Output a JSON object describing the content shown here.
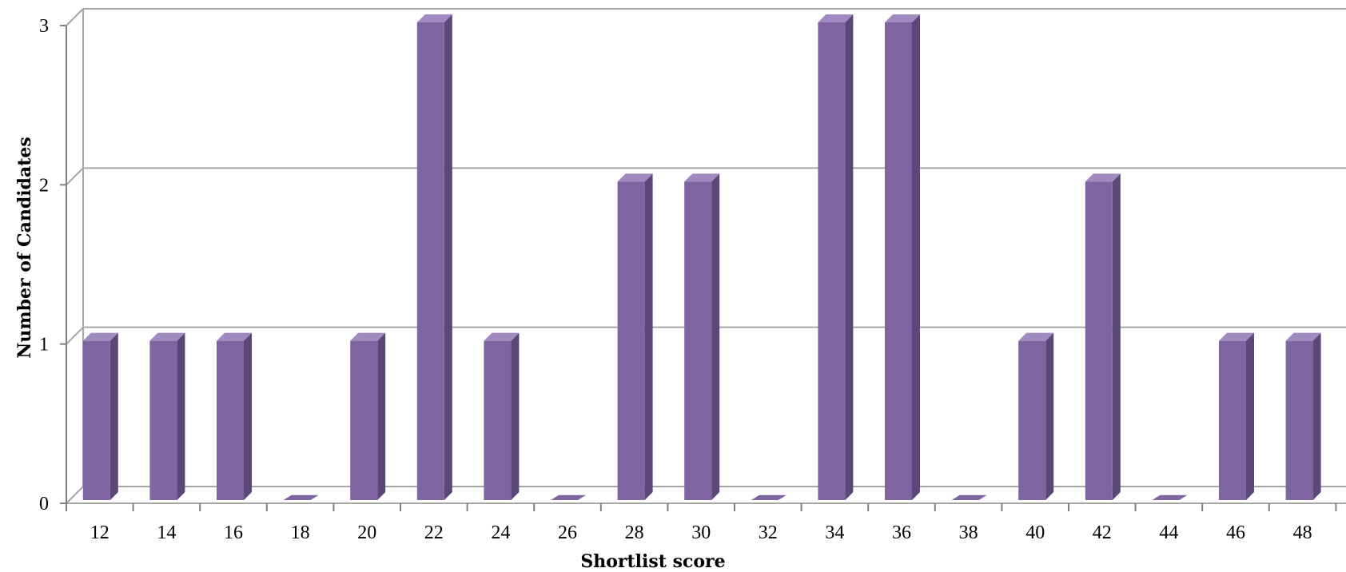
{
  "chart_data": {
    "type": "bar",
    "title": "",
    "xlabel": "Shortlist score",
    "ylabel": "Number of Candidates",
    "categories": [
      "12",
      "14",
      "16",
      "18",
      "20",
      "22",
      "24",
      "26",
      "28",
      "30",
      "32",
      "34",
      "36",
      "38",
      "40",
      "42",
      "44",
      "46",
      "48"
    ],
    "values": [
      1,
      1,
      1,
      0,
      1,
      3,
      1,
      0,
      2,
      2,
      0,
      3,
      3,
      0,
      1,
      2,
      0,
      1,
      1
    ],
    "ylim": [
      0,
      3
    ],
    "yticks": [
      "0",
      "1",
      "2",
      "3"
    ],
    "grid": true,
    "style": "3d-column",
    "legend": "none"
  },
  "colors": {
    "bar_front": "#8064a2",
    "bar_side": "#5b4778",
    "bar_top": "#a08ac0",
    "gridline": "#a6a6a6",
    "axis": "#808080"
  }
}
